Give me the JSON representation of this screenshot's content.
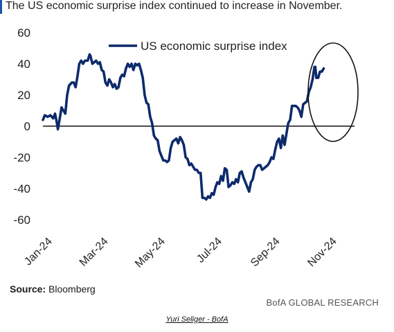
{
  "header": {
    "title": "The US economic surprise index continued to increase in November."
  },
  "footer": {
    "source_label": "Source:",
    "source_value": "Bloomberg",
    "brand": "BofA GLOBAL RESEARCH",
    "credit": "Yuri Seliger - BofA"
  },
  "colors": {
    "line": "#0d2a6b",
    "accent": "#1a56a8",
    "axis": "#111111",
    "text": "#222222"
  },
  "chart_data": {
    "type": "line",
    "title": "",
    "xlabel": "",
    "ylabel": "",
    "ylim": [
      -60,
      60
    ],
    "yticks": [
      60,
      40,
      20,
      0,
      -20,
      -40,
      -60
    ],
    "xlim": [
      "2024-01-01",
      "2024-11-30"
    ],
    "xticks": [
      {
        "date": "2024-01-01",
        "label": "Jan-24"
      },
      {
        "date": "2024-03-01",
        "label": "Mar-24"
      },
      {
        "date": "2024-05-01",
        "label": "May-24"
      },
      {
        "date": "2024-07-01",
        "label": "Jul-24"
      },
      {
        "date": "2024-09-01",
        "label": "Sep-24"
      },
      {
        "date": "2024-11-01",
        "label": "Nov-24"
      }
    ],
    "grid": false,
    "legend_position": "top-center",
    "annotation": "ellipse highlighting October–November rise",
    "series": [
      {
        "name": "US economic surprise index",
        "points": [
          [
            "2024-01-01",
            4
          ],
          [
            "2024-01-03",
            7
          ],
          [
            "2024-01-06",
            6
          ],
          [
            "2024-01-09",
            7
          ],
          [
            "2024-01-12",
            5
          ],
          [
            "2024-01-14",
            8
          ],
          [
            "2024-01-16",
            2
          ],
          [
            "2024-01-17",
            -2
          ],
          [
            "2024-01-19",
            5
          ],
          [
            "2024-01-21",
            12
          ],
          [
            "2024-01-23",
            10
          ],
          [
            "2024-01-25",
            8
          ],
          [
            "2024-01-27",
            20
          ],
          [
            "2024-01-29",
            26
          ],
          [
            "2024-02-01",
            28
          ],
          [
            "2024-02-03",
            28
          ],
          [
            "2024-02-05",
            25
          ],
          [
            "2024-02-07",
            32
          ],
          [
            "2024-02-09",
            40
          ],
          [
            "2024-02-11",
            42
          ],
          [
            "2024-02-13",
            40
          ],
          [
            "2024-02-15",
            42
          ],
          [
            "2024-02-18",
            42
          ],
          [
            "2024-02-20",
            46
          ],
          [
            "2024-02-21",
            45
          ],
          [
            "2024-02-23",
            40
          ],
          [
            "2024-02-25",
            41
          ],
          [
            "2024-02-27",
            42
          ],
          [
            "2024-02-29",
            40
          ],
          [
            "2024-03-02",
            41
          ],
          [
            "2024-03-04",
            36
          ],
          [
            "2024-03-06",
            35
          ],
          [
            "2024-03-08",
            28
          ],
          [
            "2024-03-10",
            26
          ],
          [
            "2024-03-12",
            30
          ],
          [
            "2024-03-14",
            28
          ],
          [
            "2024-03-16",
            25
          ],
          [
            "2024-03-18",
            27
          ],
          [
            "2024-03-20",
            24
          ],
          [
            "2024-03-22",
            25
          ],
          [
            "2024-03-24",
            31
          ],
          [
            "2024-03-26",
            33
          ],
          [
            "2024-03-28",
            32
          ],
          [
            "2024-03-30",
            37
          ],
          [
            "2024-04-01",
            40
          ],
          [
            "2024-04-03",
            38
          ],
          [
            "2024-04-05",
            40
          ],
          [
            "2024-04-07",
            36
          ],
          [
            "2024-04-09",
            40
          ],
          [
            "2024-04-11",
            39
          ],
          [
            "2024-04-13",
            40
          ],
          [
            "2024-04-15",
            36
          ],
          [
            "2024-04-17",
            31
          ],
          [
            "2024-04-19",
            20
          ],
          [
            "2024-04-21",
            15
          ],
          [
            "2024-04-23",
            14
          ],
          [
            "2024-04-25",
            6
          ],
          [
            "2024-04-27",
            2
          ],
          [
            "2024-04-29",
            -6
          ],
          [
            "2024-05-01",
            -8
          ],
          [
            "2024-05-03",
            -9
          ],
          [
            "2024-05-05",
            -16
          ],
          [
            "2024-05-07",
            -19
          ],
          [
            "2024-05-09",
            -22
          ],
          [
            "2024-05-11",
            -22
          ],
          [
            "2024-05-13",
            -23
          ],
          [
            "2024-05-15",
            -22
          ],
          [
            "2024-05-17",
            -14
          ],
          [
            "2024-05-19",
            -10
          ],
          [
            "2024-05-21",
            -9
          ],
          [
            "2024-05-23",
            -8
          ],
          [
            "2024-05-25",
            -11
          ],
          [
            "2024-05-27",
            -7
          ],
          [
            "2024-05-29",
            -9
          ],
          [
            "2024-05-31",
            -12
          ],
          [
            "2024-06-02",
            -20
          ],
          [
            "2024-06-04",
            -21
          ],
          [
            "2024-06-06",
            -25
          ],
          [
            "2024-06-08",
            -24
          ],
          [
            "2024-06-10",
            -26
          ],
          [
            "2024-06-12",
            -28
          ],
          [
            "2024-06-14",
            -28
          ],
          [
            "2024-06-16",
            -30
          ],
          [
            "2024-06-18",
            -30
          ],
          [
            "2024-06-20",
            -46
          ],
          [
            "2024-06-22",
            -46
          ],
          [
            "2024-06-24",
            -47
          ],
          [
            "2024-06-26",
            -45
          ],
          [
            "2024-06-28",
            -46
          ],
          [
            "2024-06-30",
            -43
          ],
          [
            "2024-07-02",
            -44
          ],
          [
            "2024-07-04",
            -39
          ],
          [
            "2024-07-06",
            -36
          ],
          [
            "2024-07-08",
            -37
          ],
          [
            "2024-07-10",
            -32
          ],
          [
            "2024-07-12",
            -35
          ],
          [
            "2024-07-14",
            -27
          ],
          [
            "2024-07-16",
            -28
          ],
          [
            "2024-07-18",
            -39
          ],
          [
            "2024-07-20",
            -38
          ],
          [
            "2024-07-22",
            -36
          ],
          [
            "2024-07-24",
            -37
          ],
          [
            "2024-07-26",
            -34
          ],
          [
            "2024-07-28",
            -36
          ],
          [
            "2024-07-30",
            -30
          ],
          [
            "2024-08-01",
            -29
          ],
          [
            "2024-08-03",
            -33
          ],
          [
            "2024-08-05",
            -36
          ],
          [
            "2024-08-07",
            -39
          ],
          [
            "2024-08-09",
            -42
          ],
          [
            "2024-08-11",
            -36
          ],
          [
            "2024-08-13",
            -34
          ],
          [
            "2024-08-15",
            -28
          ],
          [
            "2024-08-17",
            -26
          ],
          [
            "2024-08-19",
            -25
          ],
          [
            "2024-08-21",
            -25
          ],
          [
            "2024-08-23",
            -28
          ],
          [
            "2024-08-25",
            -27
          ],
          [
            "2024-08-27",
            -26
          ],
          [
            "2024-08-29",
            -25
          ],
          [
            "2024-08-31",
            -23
          ],
          [
            "2024-09-02",
            -20
          ],
          [
            "2024-09-04",
            -21
          ],
          [
            "2024-09-06",
            -15
          ],
          [
            "2024-09-08",
            -10
          ],
          [
            "2024-09-10",
            -8
          ],
          [
            "2024-09-12",
            -14
          ],
          [
            "2024-09-14",
            -6
          ],
          [
            "2024-09-16",
            -12
          ],
          [
            "2024-09-18",
            -5
          ],
          [
            "2024-09-20",
            2
          ],
          [
            "2024-09-22",
            4
          ],
          [
            "2024-09-24",
            13
          ],
          [
            "2024-09-26",
            13
          ],
          [
            "2024-09-28",
            13
          ],
          [
            "2024-09-30",
            12
          ],
          [
            "2024-10-02",
            10
          ],
          [
            "2024-10-04",
            6
          ],
          [
            "2024-10-06",
            14
          ],
          [
            "2024-10-08",
            15
          ],
          [
            "2024-10-10",
            16
          ],
          [
            "2024-10-12",
            22
          ],
          [
            "2024-10-14",
            25
          ],
          [
            "2024-10-16",
            30
          ],
          [
            "2024-10-18",
            38
          ],
          [
            "2024-10-19",
            38
          ],
          [
            "2024-10-20",
            31
          ],
          [
            "2024-10-22",
            31
          ],
          [
            "2024-10-24",
            35
          ],
          [
            "2024-10-26",
            35
          ],
          [
            "2024-10-28",
            37
          ]
        ]
      }
    ]
  }
}
